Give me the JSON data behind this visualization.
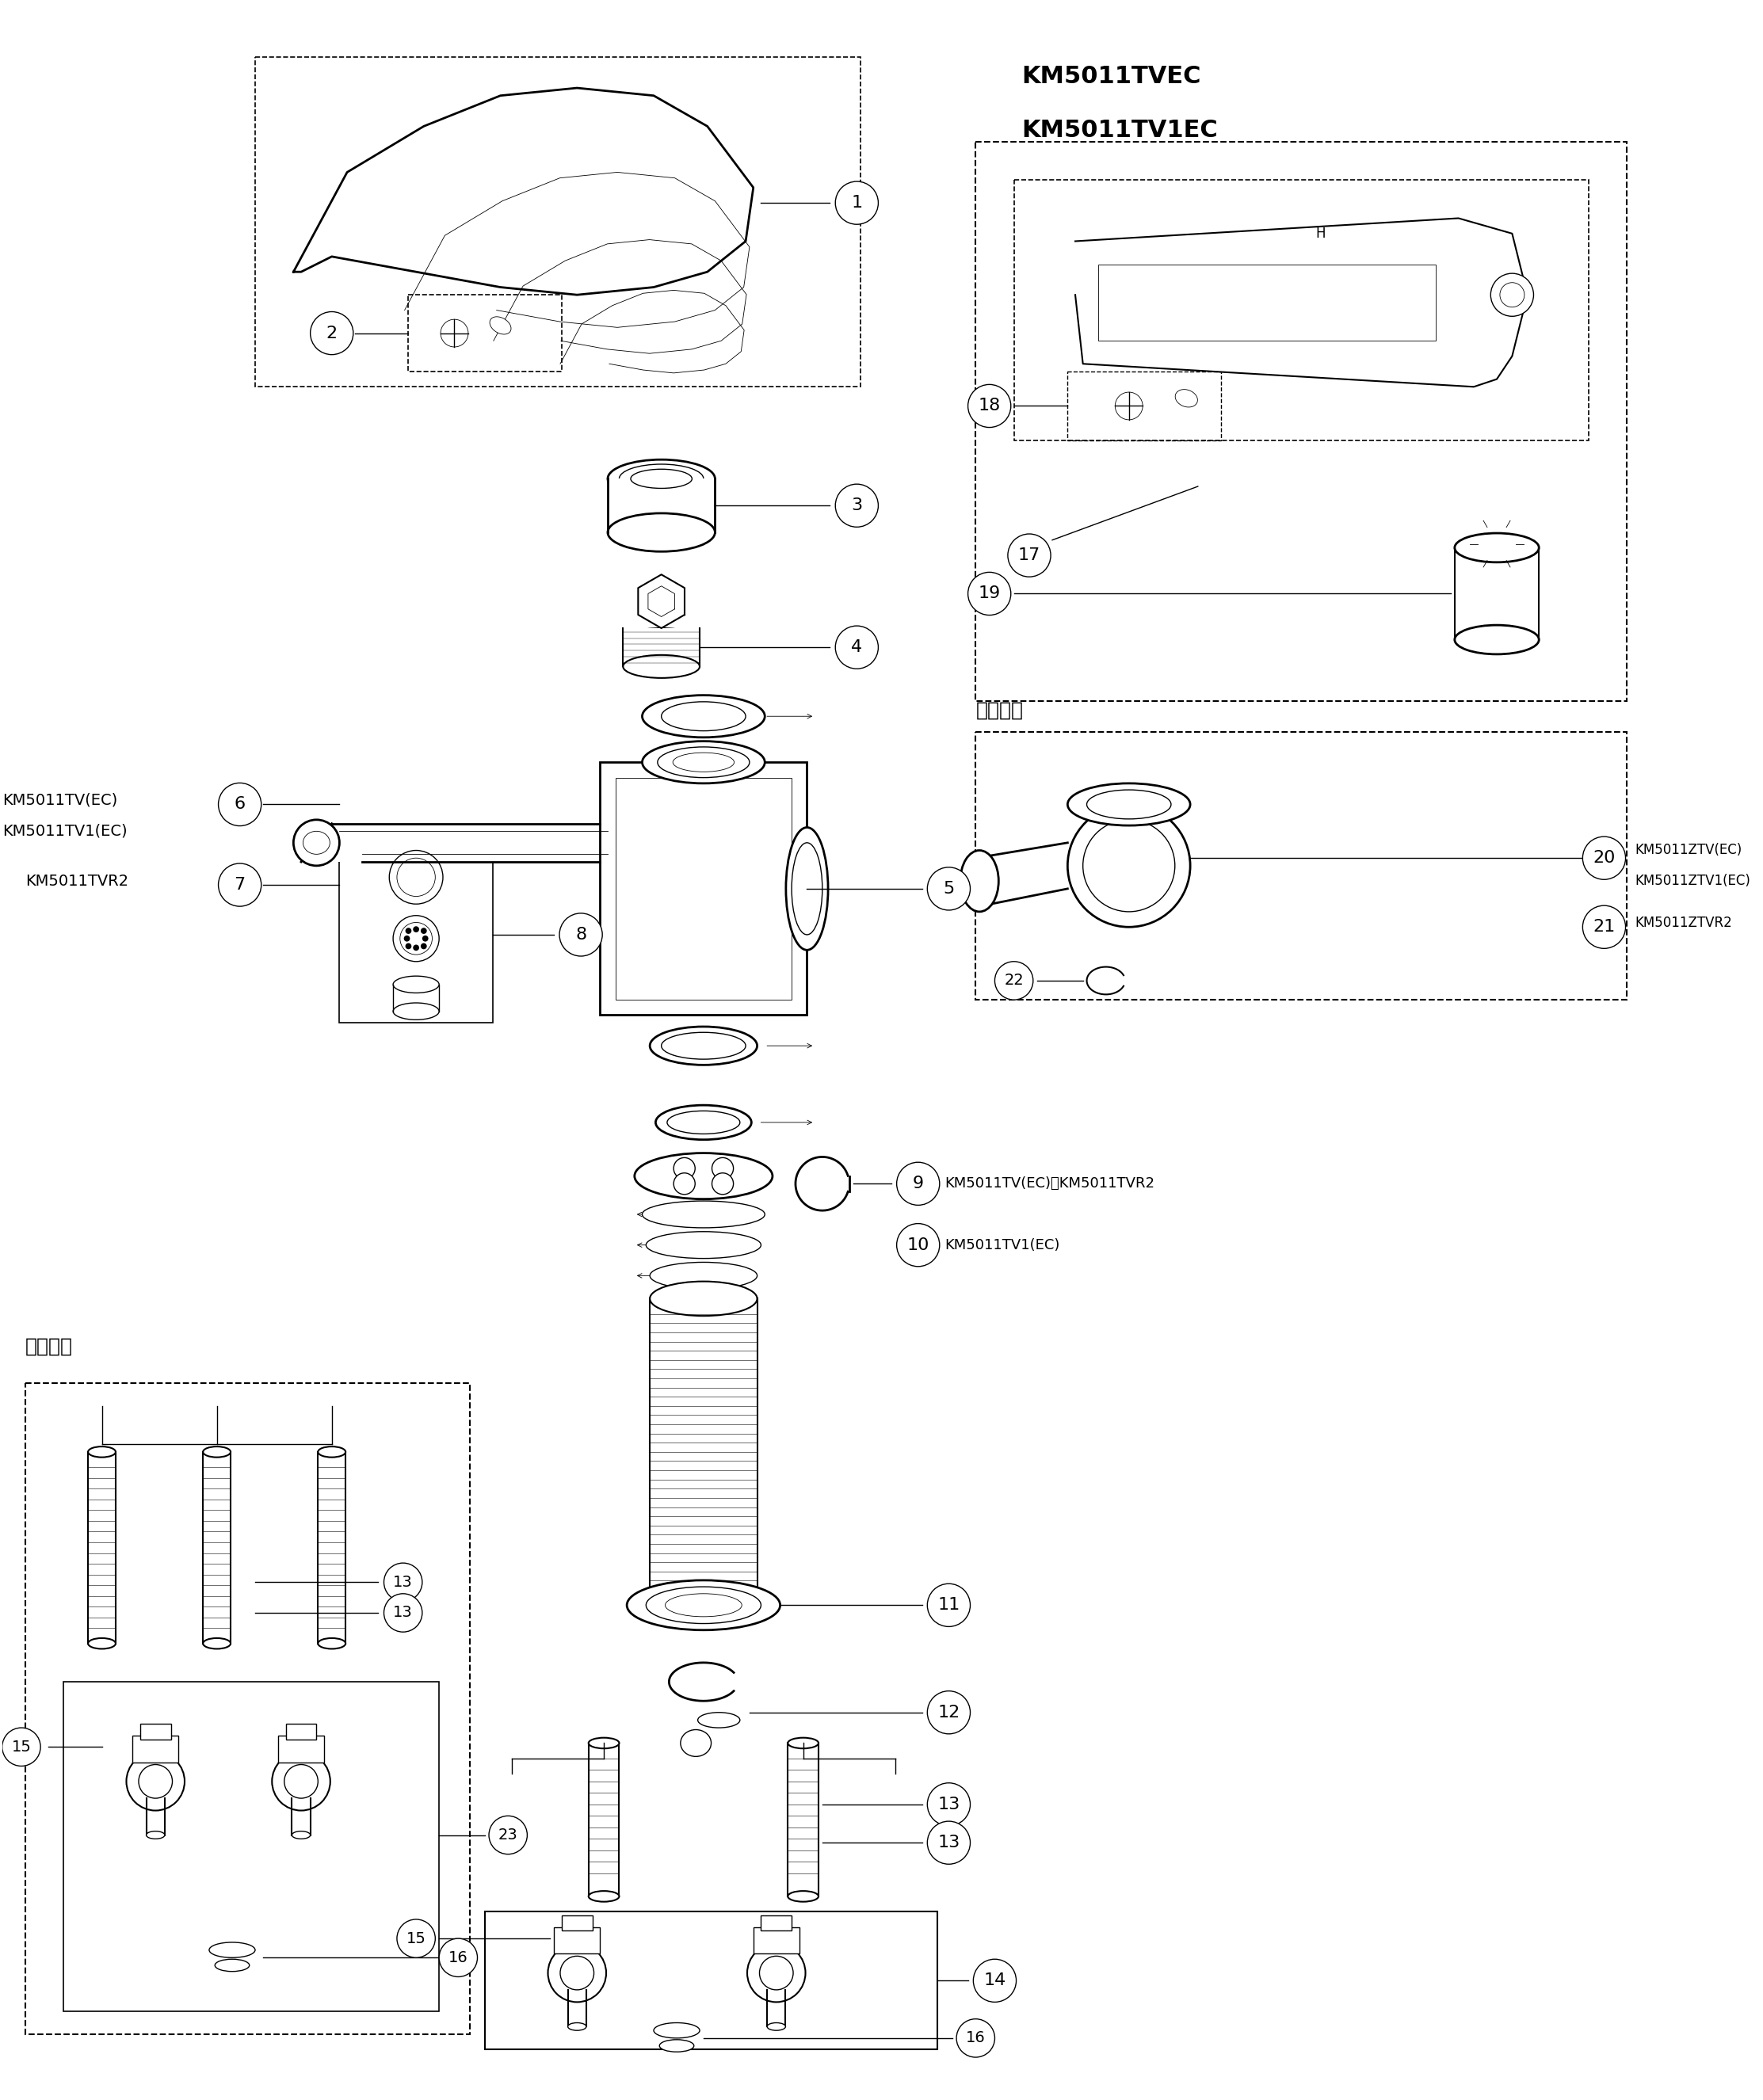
{
  "bg_color": "#ffffff",
  "line_color": "#000000",
  "fig_width": 22.25,
  "fig_height": 26.51,
  "labels": {
    "top_right_line1": "KM5011TVEC",
    "top_right_line2": "KM5011TV1EC",
    "cold_region_top": "寒冷地用",
    "cold_region_bot": "寒冷地用",
    "left_6a": "KM5011TV(EC)",
    "left_6b": "KM5011TV1(EC)",
    "left_7": "KM5011TVR2",
    "right_9": "KM5011TV(EC)・KM5011TVR2",
    "right_10": "KM5011TV1(EC)",
    "right_20a": "KM5011ZTV(EC)",
    "right_20b": "KM5011ZTV1(EC)",
    "right_21": "KM5011ZTVR2"
  }
}
